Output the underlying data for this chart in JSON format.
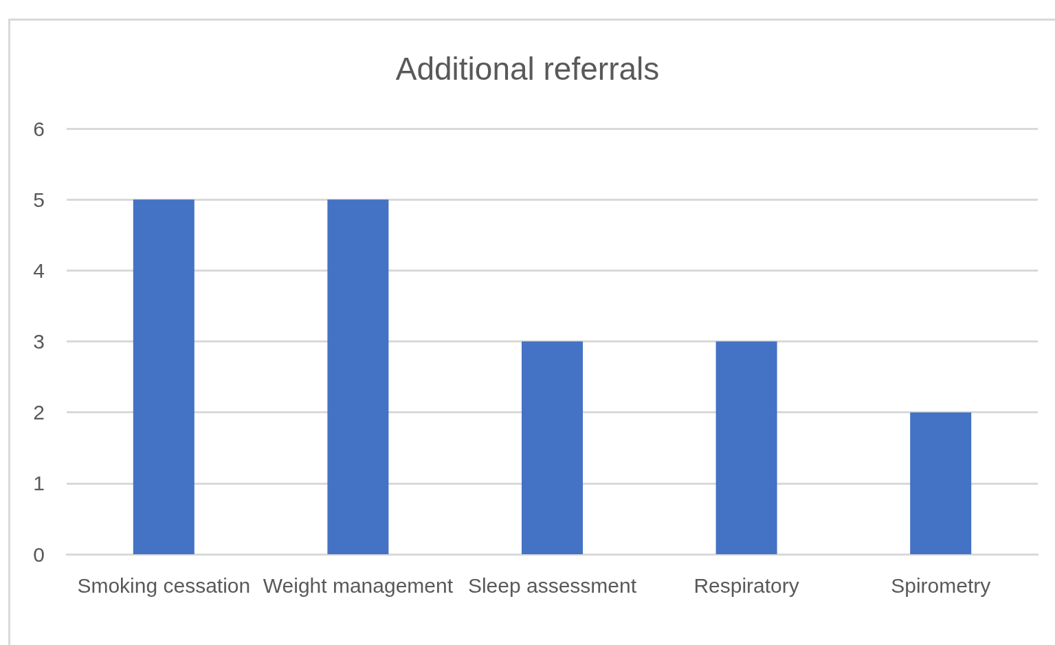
{
  "chart_data": {
    "type": "bar",
    "title": "Additional referrals",
    "categories": [
      "Smoking cessation",
      "Weight management",
      "Sleep assessment",
      "Respiratory",
      "Spirometry"
    ],
    "values": [
      5,
      5,
      3,
      3,
      2
    ],
    "color": "#4472c4",
    "ylim": [
      0,
      6
    ],
    "yticks": [
      0,
      1,
      2,
      3,
      4,
      5,
      6
    ],
    "grid": "y"
  }
}
